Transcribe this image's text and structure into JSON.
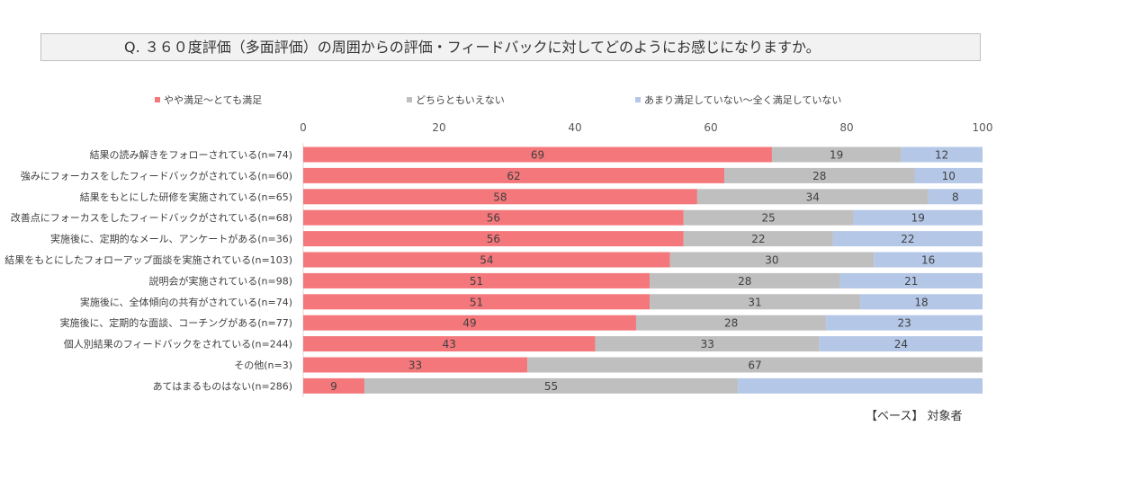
{
  "question": "Q. ３６０度評価（多面評価）の周囲からの評価・フィードバックに対してどのようにお感じになりますか。",
  "base_note": "【ベース】 対象者",
  "colors": {
    "satisfied": "#f4777b",
    "neutral": "#bfbfbf",
    "unsatisfied": "#b4c7e7"
  },
  "chart_data": {
    "type": "bar",
    "orientation": "horizontal",
    "stacked": true,
    "xlim": [
      0,
      100
    ],
    "xticks": [
      "0",
      "20",
      "40",
      "60",
      "80",
      "100"
    ],
    "legend_position": "top",
    "categories": [
      "結果の読み解きをフォローされている(n=74)",
      "強みにフォーカスをしたフィードバックがされている(n=60)",
      "結果をもとにした研修を実施されている(n=65)",
      "改善点にフォーカスをしたフィードバックがされている(n=68)",
      "実施後に、定期的なメール、アンケートがある(n=36)",
      "結果をもとにしたフォローアップ面談を実施されている(n=103)",
      "説明会が実施されている(n=98)",
      "実施後に、全体傾向の共有がされている(n=74)",
      "実施後に、定期的な面談、コーチングがある(n=77)",
      "個人別結果のフィードバックをされている(n=244)",
      "その他(n=3)",
      "あてはまるものはない(n=286)"
    ],
    "series": [
      {
        "name": "やや満足～とても満足",
        "values": [
          69,
          62,
          58,
          56,
          56,
          54,
          51,
          51,
          49,
          43,
          33,
          9
        ],
        "labels": [
          "69",
          "62",
          "58",
          "56",
          "56",
          "54",
          "51",
          "51",
          "49",
          "43",
          "33",
          "9"
        ]
      },
      {
        "name": "どちらともいえない",
        "values": [
          19,
          28,
          34,
          25,
          22,
          30,
          28,
          31,
          28,
          33,
          67,
          55
        ],
        "labels": [
          "19",
          "28",
          "34",
          "25",
          "22",
          "30",
          "28",
          "31",
          "28",
          "33",
          "67",
          "55"
        ]
      },
      {
        "name": "あまり満足していない～全く満足していない",
        "values": [
          12,
          10,
          8,
          19,
          22,
          16,
          21,
          18,
          23,
          24,
          0,
          36
        ],
        "labels": [
          "12",
          "10",
          "8",
          "19",
          "22",
          "16",
          "21",
          "18",
          "23",
          "24",
          "",
          ""
        ]
      }
    ]
  }
}
